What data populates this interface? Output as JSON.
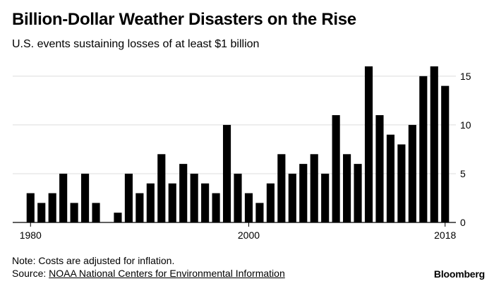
{
  "header": {
    "title": "Billion-Dollar Weather Disasters on the Rise",
    "subtitle": "U.S. events sustaining losses of at least $1 billion"
  },
  "footer": {
    "note": "Note: Costs are adjusted for inflation.",
    "source_prefix": "Source: ",
    "source_link": "NOAA National Centers for Environmental Information",
    "brand": "Bloomberg"
  },
  "chart_data": {
    "type": "bar",
    "title": "Billion-Dollar Weather Disasters on the Rise",
    "subtitle": "U.S. events sustaining losses of at least $1 billion",
    "xlabel": "",
    "ylabel": "",
    "x": [
      1980,
      1981,
      1982,
      1983,
      1984,
      1985,
      1986,
      1987,
      1988,
      1989,
      1990,
      1991,
      1992,
      1993,
      1994,
      1995,
      1996,
      1997,
      1998,
      1999,
      2000,
      2001,
      2002,
      2003,
      2004,
      2005,
      2006,
      2007,
      2008,
      2009,
      2010,
      2011,
      2012,
      2013,
      2014,
      2015,
      2016,
      2017,
      2018
    ],
    "values": [
      3,
      2,
      3,
      5,
      2,
      5,
      2,
      0,
      1,
      5,
      3,
      4,
      7,
      4,
      6,
      5,
      4,
      3,
      10,
      5,
      3,
      2,
      4,
      7,
      5,
      6,
      7,
      5,
      11,
      7,
      6,
      16,
      11,
      9,
      8,
      10,
      15,
      16,
      14
    ],
    "x_tick_labels": [
      "1980",
      "2000",
      "2018"
    ],
    "x_tick_values": [
      1980,
      2000,
      2018
    ],
    "y_tick_labels": [
      "0",
      "5",
      "10",
      "15"
    ],
    "y_tick_values": [
      0,
      5,
      10,
      15
    ],
    "ylim": [
      0,
      16
    ],
    "yaxis_side": "right",
    "grid": true,
    "bar_color": "#000000",
    "grid_color": "#dcdcdc"
  }
}
